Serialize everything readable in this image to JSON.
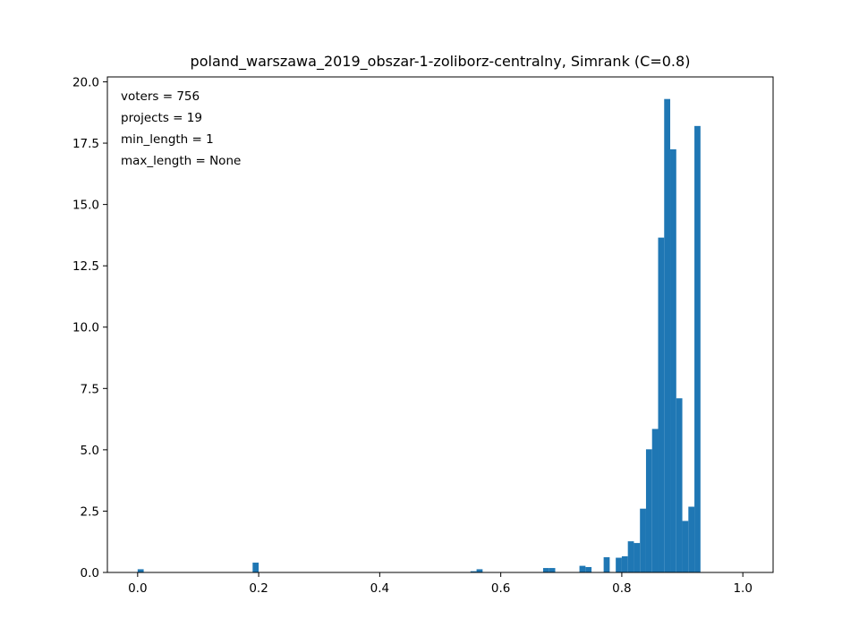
{
  "chart_data": {
    "type": "bar",
    "title": "poland_warszawa_2019_obszar-1-zoliborz-centralny, Simrank (C=0.8)",
    "xlabel": "",
    "ylabel": "",
    "xlim": [
      -0.05,
      1.05
    ],
    "ylim": [
      0,
      20.2
    ],
    "bin_width": 0.01,
    "bar_color": "#1f77b4",
    "grid": false,
    "x_ticks": [
      0.0,
      0.2,
      0.4,
      0.6,
      0.8,
      1.0
    ],
    "x_tick_labels": [
      "0.0",
      "0.2",
      "0.4",
      "0.6",
      "0.8",
      "1.0"
    ],
    "y_ticks": [
      0.0,
      2.5,
      5.0,
      7.5,
      10.0,
      12.5,
      15.0,
      17.5,
      20.0
    ],
    "y_tick_labels": [
      "0.0",
      "2.5",
      "5.0",
      "7.5",
      "10.0",
      "12.5",
      "15.0",
      "17.5",
      "20.0"
    ],
    "bins": [
      {
        "x": 0.0,
        "value": 0.13
      },
      {
        "x": 0.19,
        "value": 0.4
      },
      {
        "x": 0.55,
        "value": 0.05
      },
      {
        "x": 0.56,
        "value": 0.13
      },
      {
        "x": 0.67,
        "value": 0.18
      },
      {
        "x": 0.68,
        "value": 0.18
      },
      {
        "x": 0.73,
        "value": 0.27
      },
      {
        "x": 0.74,
        "value": 0.22
      },
      {
        "x": 0.77,
        "value": 0.62
      },
      {
        "x": 0.79,
        "value": 0.6
      },
      {
        "x": 0.8,
        "value": 0.66
      },
      {
        "x": 0.81,
        "value": 1.27
      },
      {
        "x": 0.82,
        "value": 1.2
      },
      {
        "x": 0.83,
        "value": 2.6
      },
      {
        "x": 0.84,
        "value": 5.02
      },
      {
        "x": 0.85,
        "value": 5.85
      },
      {
        "x": 0.86,
        "value": 13.65
      },
      {
        "x": 0.87,
        "value": 19.3
      },
      {
        "x": 0.88,
        "value": 17.25
      },
      {
        "x": 0.89,
        "value": 7.1
      },
      {
        "x": 0.9,
        "value": 2.1
      },
      {
        "x": 0.91,
        "value": 2.68
      },
      {
        "x": 0.92,
        "value": 18.2
      }
    ],
    "annotations": [
      "voters = 756",
      "projects = 19",
      "min_length = 1",
      "max_length = None"
    ],
    "annotation_placement": "top-left"
  }
}
